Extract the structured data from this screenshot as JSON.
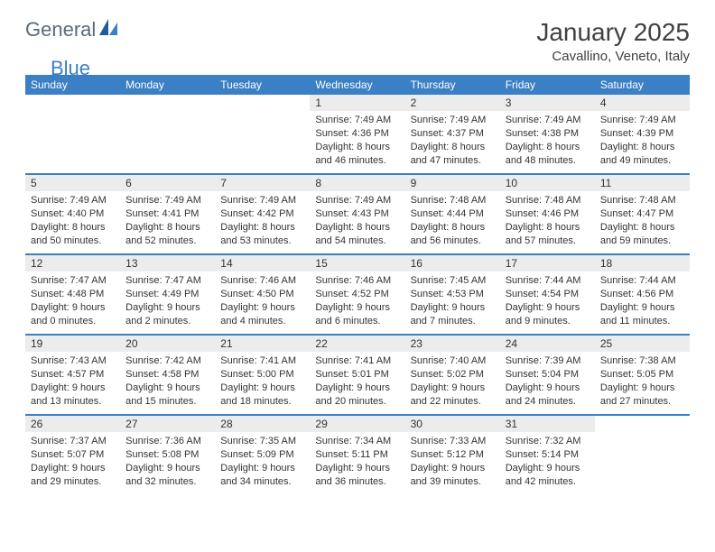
{
  "logo": {
    "text1": "General",
    "text2": "Blue"
  },
  "title": "January 2025",
  "location": "Cavallino, Veneto, Italy",
  "colors": {
    "header_blue": "#3b7fc4",
    "daynum_bg": "#ececec",
    "text": "#333333",
    "logo_gray": "#5a6a7a",
    "logo_blue": "#3b7fc4",
    "white": "#ffffff"
  },
  "typography": {
    "title_fontsize": 28,
    "location_fontsize": 15,
    "header_fontsize": 12,
    "daynum_fontsize": 12,
    "detail_fontsize": 11
  },
  "day_headers": [
    "Sunday",
    "Monday",
    "Tuesday",
    "Wednesday",
    "Thursday",
    "Friday",
    "Saturday"
  ],
  "weeks": [
    [
      null,
      null,
      null,
      {
        "n": "1",
        "sunrise": "7:49 AM",
        "sunset": "4:36 PM",
        "dl_h": "8",
        "dl_m": "46"
      },
      {
        "n": "2",
        "sunrise": "7:49 AM",
        "sunset": "4:37 PM",
        "dl_h": "8",
        "dl_m": "47"
      },
      {
        "n": "3",
        "sunrise": "7:49 AM",
        "sunset": "4:38 PM",
        "dl_h": "8",
        "dl_m": "48"
      },
      {
        "n": "4",
        "sunrise": "7:49 AM",
        "sunset": "4:39 PM",
        "dl_h": "8",
        "dl_m": "49"
      }
    ],
    [
      {
        "n": "5",
        "sunrise": "7:49 AM",
        "sunset": "4:40 PM",
        "dl_h": "8",
        "dl_m": "50"
      },
      {
        "n": "6",
        "sunrise": "7:49 AM",
        "sunset": "4:41 PM",
        "dl_h": "8",
        "dl_m": "52"
      },
      {
        "n": "7",
        "sunrise": "7:49 AM",
        "sunset": "4:42 PM",
        "dl_h": "8",
        "dl_m": "53"
      },
      {
        "n": "8",
        "sunrise": "7:49 AM",
        "sunset": "4:43 PM",
        "dl_h": "8",
        "dl_m": "54"
      },
      {
        "n": "9",
        "sunrise": "7:48 AM",
        "sunset": "4:44 PM",
        "dl_h": "8",
        "dl_m": "56"
      },
      {
        "n": "10",
        "sunrise": "7:48 AM",
        "sunset": "4:46 PM",
        "dl_h": "8",
        "dl_m": "57"
      },
      {
        "n": "11",
        "sunrise": "7:48 AM",
        "sunset": "4:47 PM",
        "dl_h": "8",
        "dl_m": "59"
      }
    ],
    [
      {
        "n": "12",
        "sunrise": "7:47 AM",
        "sunset": "4:48 PM",
        "dl_h": "9",
        "dl_m": "0"
      },
      {
        "n": "13",
        "sunrise": "7:47 AM",
        "sunset": "4:49 PM",
        "dl_h": "9",
        "dl_m": "2"
      },
      {
        "n": "14",
        "sunrise": "7:46 AM",
        "sunset": "4:50 PM",
        "dl_h": "9",
        "dl_m": "4"
      },
      {
        "n": "15",
        "sunrise": "7:46 AM",
        "sunset": "4:52 PM",
        "dl_h": "9",
        "dl_m": "6"
      },
      {
        "n": "16",
        "sunrise": "7:45 AM",
        "sunset": "4:53 PM",
        "dl_h": "9",
        "dl_m": "7"
      },
      {
        "n": "17",
        "sunrise": "7:44 AM",
        "sunset": "4:54 PM",
        "dl_h": "9",
        "dl_m": "9"
      },
      {
        "n": "18",
        "sunrise": "7:44 AM",
        "sunset": "4:56 PM",
        "dl_h": "9",
        "dl_m": "11"
      }
    ],
    [
      {
        "n": "19",
        "sunrise": "7:43 AM",
        "sunset": "4:57 PM",
        "dl_h": "9",
        "dl_m": "13"
      },
      {
        "n": "20",
        "sunrise": "7:42 AM",
        "sunset": "4:58 PM",
        "dl_h": "9",
        "dl_m": "15"
      },
      {
        "n": "21",
        "sunrise": "7:41 AM",
        "sunset": "5:00 PM",
        "dl_h": "9",
        "dl_m": "18"
      },
      {
        "n": "22",
        "sunrise": "7:41 AM",
        "sunset": "5:01 PM",
        "dl_h": "9",
        "dl_m": "20"
      },
      {
        "n": "23",
        "sunrise": "7:40 AM",
        "sunset": "5:02 PM",
        "dl_h": "9",
        "dl_m": "22"
      },
      {
        "n": "24",
        "sunrise": "7:39 AM",
        "sunset": "5:04 PM",
        "dl_h": "9",
        "dl_m": "24"
      },
      {
        "n": "25",
        "sunrise": "7:38 AM",
        "sunset": "5:05 PM",
        "dl_h": "9",
        "dl_m": "27"
      }
    ],
    [
      {
        "n": "26",
        "sunrise": "7:37 AM",
        "sunset": "5:07 PM",
        "dl_h": "9",
        "dl_m": "29"
      },
      {
        "n": "27",
        "sunrise": "7:36 AM",
        "sunset": "5:08 PM",
        "dl_h": "9",
        "dl_m": "32"
      },
      {
        "n": "28",
        "sunrise": "7:35 AM",
        "sunset": "5:09 PM",
        "dl_h": "9",
        "dl_m": "34"
      },
      {
        "n": "29",
        "sunrise": "7:34 AM",
        "sunset": "5:11 PM",
        "dl_h": "9",
        "dl_m": "36"
      },
      {
        "n": "30",
        "sunrise": "7:33 AM",
        "sunset": "5:12 PM",
        "dl_h": "9",
        "dl_m": "39"
      },
      {
        "n": "31",
        "sunrise": "7:32 AM",
        "sunset": "5:14 PM",
        "dl_h": "9",
        "dl_m": "42"
      },
      null
    ]
  ],
  "labels": {
    "sunrise": "Sunrise:",
    "sunset": "Sunset:",
    "daylight": "Daylight:",
    "hours": "hours",
    "and": "and",
    "minutes": "minutes."
  }
}
